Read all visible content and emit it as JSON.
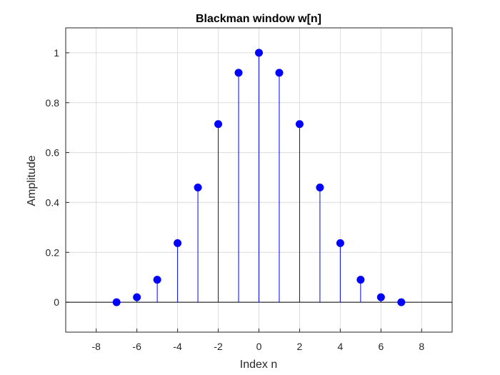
{
  "chart_data": {
    "type": "stem",
    "title": "Blackman window w[n]",
    "xlabel": "Index n",
    "ylabel": "Amplitude",
    "xlim": [
      -9.5,
      9.5
    ],
    "ylim": [
      -0.12,
      1.1
    ],
    "xticks": [
      -8,
      -6,
      -4,
      -2,
      0,
      2,
      4,
      6,
      8
    ],
    "yticks": [
      0,
      0.2,
      0.4,
      0.6,
      0.8,
      1
    ],
    "grid": true,
    "color": "#0000ff",
    "x": [
      -7,
      -6,
      -5,
      -4,
      -3,
      -2,
      -1,
      0,
      1,
      2,
      3,
      4,
      5,
      6,
      7
    ],
    "values": [
      0,
      0.02,
      0.09,
      0.237,
      0.46,
      0.714,
      0.92,
      1,
      0.92,
      0.714,
      0.46,
      0.237,
      0.09,
      0.02,
      0
    ]
  }
}
